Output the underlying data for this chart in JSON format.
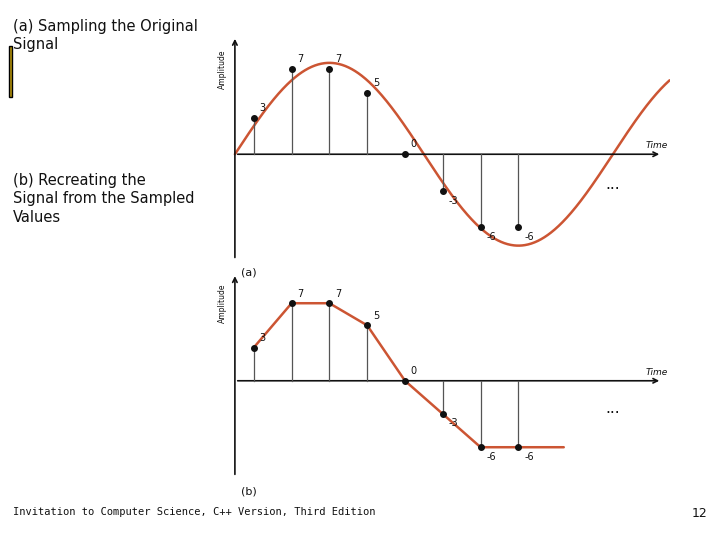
{
  "title_a": "(a) Sampling the Original\nSignal",
  "title_b": "(b) Recreating the\nSignal from the Sampled\nValues",
  "footer": "Invitation to Computer Science, C++ Version, Third Edition",
  "page": "12",
  "sample_values": [
    3,
    7,
    7,
    5,
    0,
    -3,
    -6,
    -6
  ],
  "sample_x_positions": [
    1,
    2,
    3,
    4,
    5,
    6,
    7,
    8
  ],
  "curve_color": "#cc5533",
  "dot_color": "#111111",
  "line_color": "#555555",
  "axis_color": "#111111",
  "text_color": "#111111",
  "bg_color": "#ffffff",
  "gold_color": "#b8960c",
  "ellipsis": "...",
  "label_a": "(a)",
  "label_b": "(b)",
  "sine_amplitude": 7.5,
  "sine_period": 10.0,
  "sine_phase_shift": 0.5
}
